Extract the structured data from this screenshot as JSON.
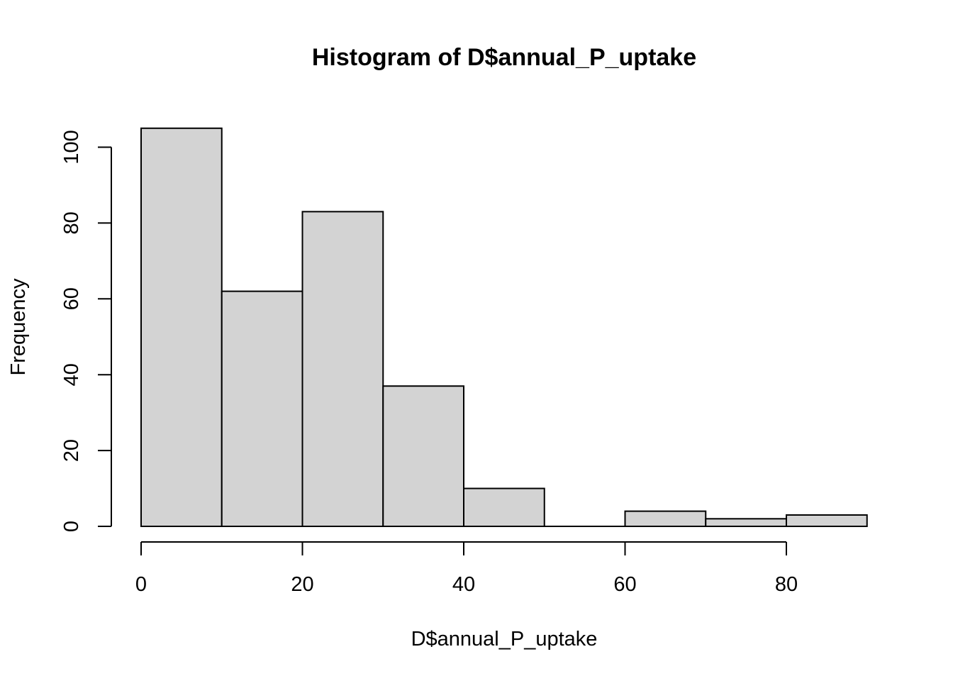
{
  "chart_data": {
    "type": "bar",
    "title": "Histogram of D$annual_P_uptake",
    "xlabel": "D$annual_P_uptake",
    "ylabel": "Frequency",
    "bins": [
      {
        "from": 0,
        "to": 10,
        "count": 105
      },
      {
        "from": 10,
        "to": 20,
        "count": 62
      },
      {
        "from": 20,
        "to": 30,
        "count": 83
      },
      {
        "from": 30,
        "to": 40,
        "count": 37
      },
      {
        "from": 40,
        "to": 50,
        "count": 10
      },
      {
        "from": 50,
        "to": 60,
        "count": 0
      },
      {
        "from": 60,
        "to": 70,
        "count": 4
      },
      {
        "from": 70,
        "to": 80,
        "count": 2
      },
      {
        "from": 80,
        "to": 90,
        "count": 3
      }
    ],
    "xticks": [
      "0",
      "20",
      "40",
      "60",
      "80"
    ],
    "yticks": [
      "0",
      "20",
      "40",
      "60",
      "80",
      "100"
    ],
    "xlim": [
      0,
      90
    ],
    "ylim": [
      0,
      105
    ],
    "bar_color": "#d3d3d3",
    "grid": false
  }
}
